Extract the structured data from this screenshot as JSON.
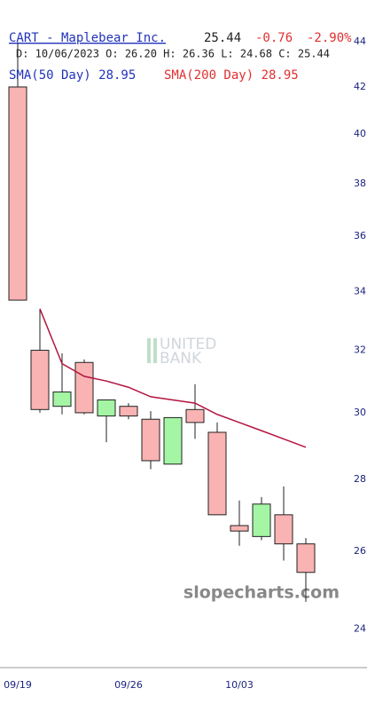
{
  "chart_data": {
    "type": "candlestick",
    "title": "CART - Maplebear Inc.",
    "last": "25.44",
    "change": "-0.76",
    "change_pct": "-2.90%",
    "ohlc_line": "D: 10/06/2023 O: 26.20 H: 26.36 L: 24.68 C: 25.44",
    "sma50_label": "SMA(50 Day) 28.95",
    "sma200_label": "SMA(200 Day) 28.95",
    "watermark_bank": [
      "UNITED",
      "BANK"
    ],
    "watermark_site": "slopecharts.com",
    "categories": [
      "09/19",
      null,
      null,
      null,
      null,
      "09/26",
      null,
      null,
      null,
      null,
      "10/03",
      null,
      null,
      null
    ],
    "open": [
      42.0,
      32.0,
      30.2,
      31.6,
      29.9,
      30.2,
      29.8,
      28.45,
      30.1,
      29.4,
      26.7,
      26.4,
      27.0,
      26.2
    ],
    "high": [
      44.0,
      33.4,
      31.9,
      31.7,
      30.4,
      30.3,
      30.05,
      29.85,
      30.9,
      29.7,
      27.4,
      27.5,
      27.8,
      26.36
    ],
    "low": [
      33.7,
      30.0,
      29.95,
      29.95,
      29.1,
      29.8,
      28.3,
      28.45,
      29.2,
      27.0,
      26.15,
      26.3,
      25.75,
      24.68
    ],
    "close": [
      33.7,
      30.1,
      30.65,
      30.0,
      30.4,
      29.9,
      28.55,
      29.85,
      29.7,
      27.0,
      26.55,
      27.3,
      26.2,
      25.44
    ],
    "up_color": "#a4f5a4",
    "down_color": "#f9b3b3",
    "sma": {
      "color": "#b3143f",
      "values": [
        null,
        33.4,
        31.56,
        31.15,
        31.0,
        30.8,
        30.5,
        30.4,
        30.3,
        29.95,
        29.7,
        29.45,
        29.2,
        28.95
      ]
    },
    "log_scale": true,
    "ylim": [
      23.1,
      44.7
    ],
    "yticks": [
      24,
      26,
      28,
      30,
      32,
      34,
      36,
      38,
      40,
      42,
      44
    ]
  }
}
